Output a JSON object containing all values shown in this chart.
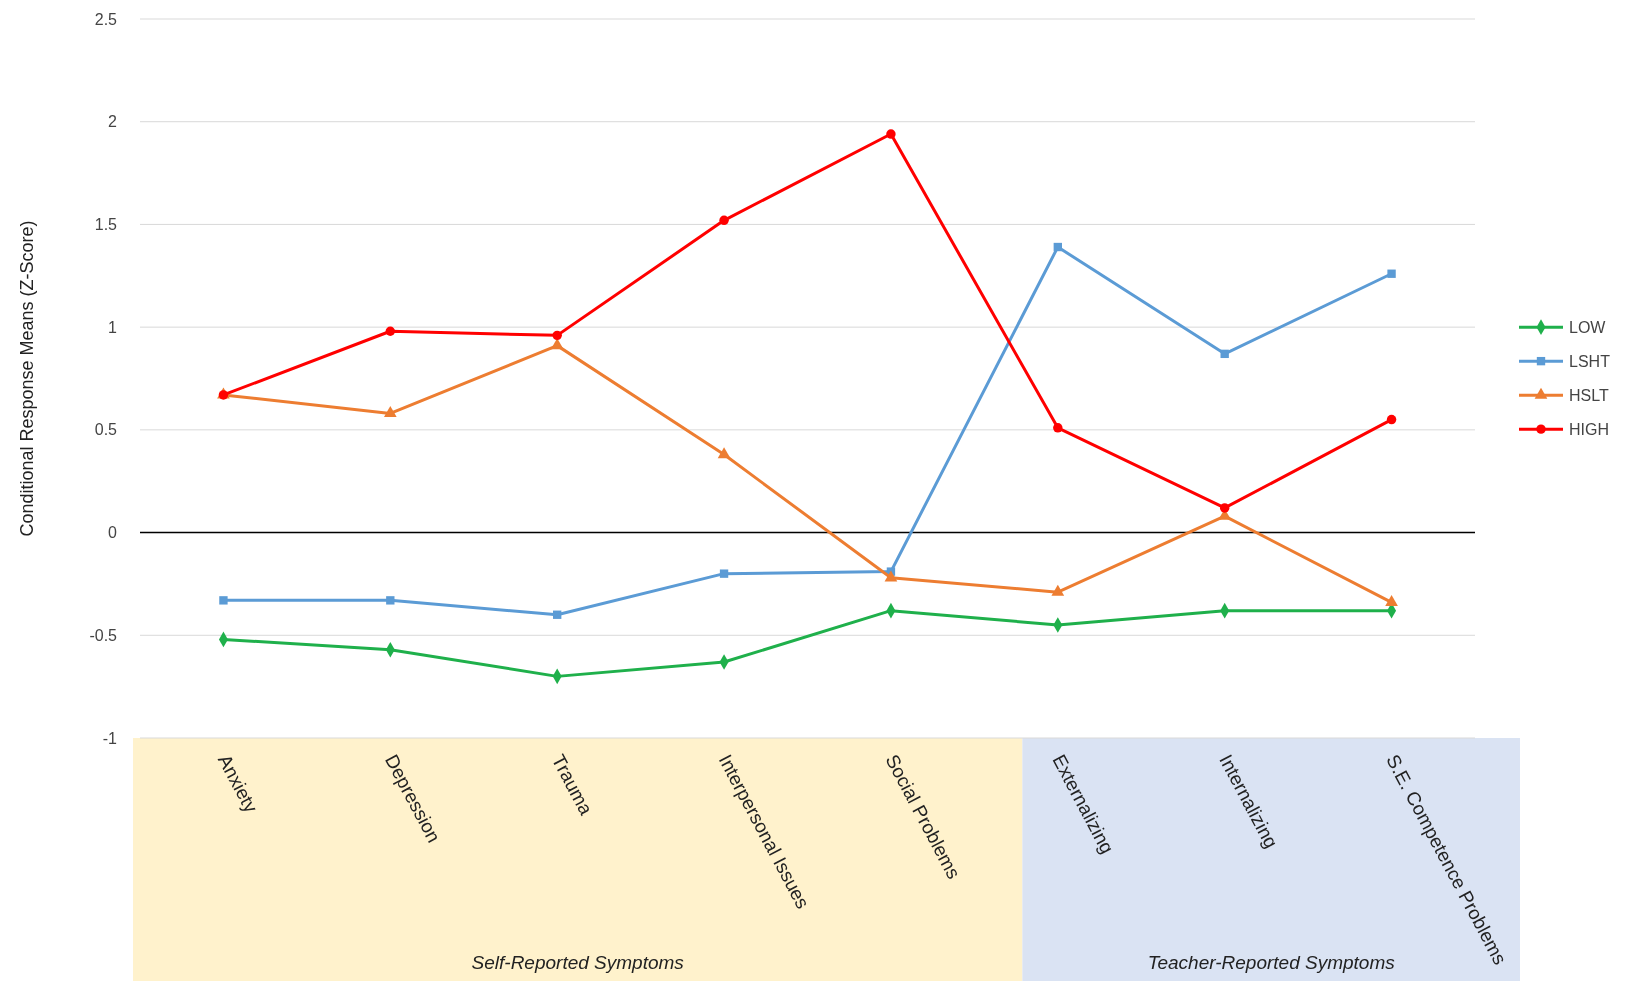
{
  "chart_data": {
    "type": "line",
    "ylabel": "Conditional Response Means (Z-Score)",
    "categories": [
      "Anxiety",
      "Depression",
      "Trauma",
      "Interpersonal Issues",
      "Social Problems",
      "Externalizing",
      "Internalizing",
      "S.E. Competence Problems"
    ],
    "series": [
      {
        "name": "LOW",
        "color": "#1fb04b",
        "marker": "diamond",
        "values": [
          -0.52,
          -0.57,
          -0.7,
          -0.63,
          -0.38,
          -0.45,
          -0.38,
          -0.38
        ]
      },
      {
        "name": "LSHT",
        "color": "#5b9bd5",
        "marker": "square",
        "values": [
          -0.33,
          -0.33,
          -0.4,
          -0.2,
          -0.19,
          1.39,
          0.87,
          1.26
        ]
      },
      {
        "name": "HSLT",
        "color": "#ed7d31",
        "marker": "triangle",
        "values": [
          0.67,
          0.58,
          0.91,
          0.38,
          -0.22,
          -0.29,
          0.08,
          -0.34
        ]
      },
      {
        "name": "HIGH",
        "color": "#ff0000",
        "marker": "circle",
        "values": [
          0.67,
          0.98,
          0.96,
          1.52,
          1.94,
          0.51,
          0.12,
          0.55
        ]
      }
    ],
    "ylim": [
      -1,
      2.5
    ],
    "yticks": [
      -1,
      -0.5,
      0,
      0.5,
      1,
      1.5,
      2,
      2.5
    ],
    "grid": "y",
    "legend": "right",
    "line_style": "solid",
    "annotations": [
      "Self-Reported Symptoms",
      "Teacher-Reported Symptoms"
    ]
  }
}
